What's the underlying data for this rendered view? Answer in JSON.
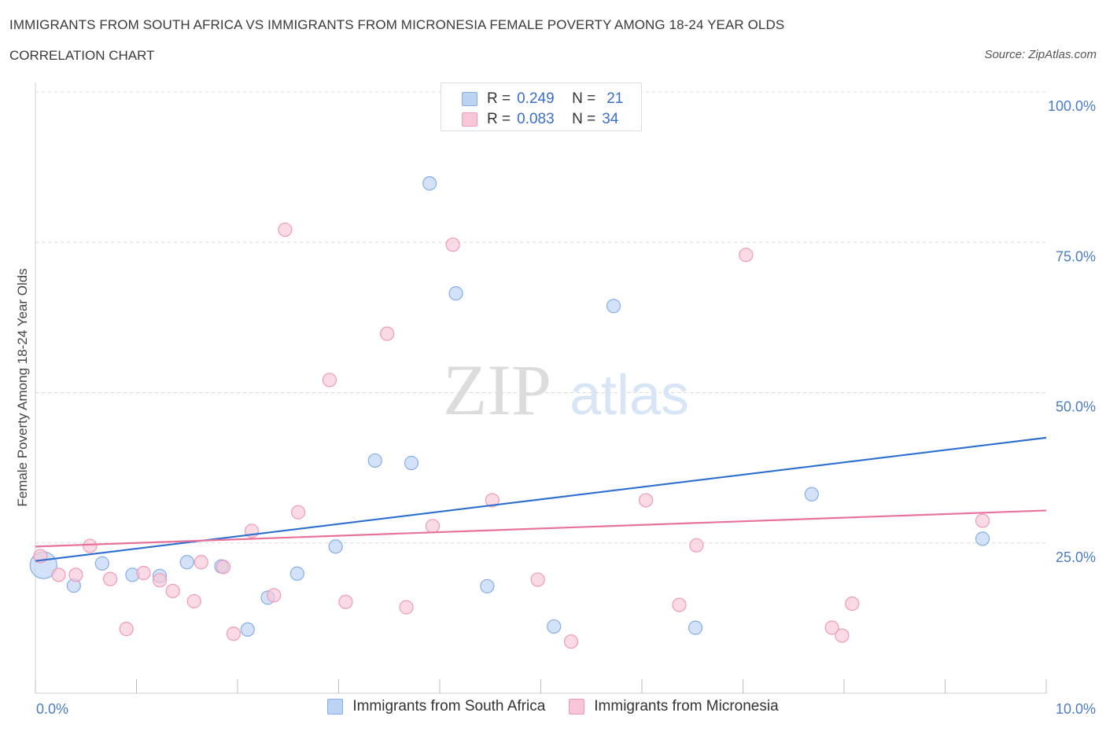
{
  "header": {
    "title": "IMMIGRANTS FROM SOUTH AFRICA VS IMMIGRANTS FROM MICRONESIA FEMALE POVERTY AMONG 18-24 YEAR OLDS",
    "subtitle": "CORRELATION CHART",
    "source": "Source: ZipAtlas.com"
  },
  "watermark": {
    "zip": "ZIP",
    "atlas": "atlas"
  },
  "legend": {
    "r_label": "R =",
    "n_label": "N =",
    "south_africa": {
      "r": "0.249",
      "n": "21"
    },
    "micronesia": {
      "r": "0.083",
      "n": "34"
    }
  },
  "colors": {
    "south_africa_fill": "#bcd3f4",
    "south_africa_stroke": "#86aee6",
    "south_africa_line": "#2c6fd1",
    "micronesia_fill": "#f8c6d6",
    "micronesia_stroke": "#ef9ab8",
    "micronesia_line": "#e8729a"
  },
  "chart_data": {
    "type": "scatter",
    "title": "IMMIGRANTS FROM SOUTH AFRICA VS IMMIGRANTS FROM MICRONESIA FEMALE POVERTY AMONG 18-24 YEAR OLDS",
    "xlabel": "",
    "ylabel": "Female Poverty Among 18-24 Year Olds",
    "xlim": [
      0,
      10
    ],
    "ylim": [
      0,
      100
    ],
    "x_tick_labels": [
      "0.0%",
      "10.0%"
    ],
    "y_ticks": [
      25,
      50,
      75,
      100
    ],
    "y_tick_labels": [
      "25.0%",
      "50.0%",
      "75.0%",
      "100.0%"
    ],
    "grid": true,
    "legend_position": "top-center",
    "series": [
      {
        "name": "Immigrants from South Africa",
        "key": "south_africa",
        "points": [
          {
            "x": 0.08,
            "y": 21.3,
            "large": true
          },
          {
            "x": 0.38,
            "y": 17.9
          },
          {
            "x": 0.66,
            "y": 21.6
          },
          {
            "x": 0.96,
            "y": 19.7
          },
          {
            "x": 1.23,
            "y": 19.5
          },
          {
            "x": 1.5,
            "y": 21.8
          },
          {
            "x": 1.84,
            "y": 21.1
          },
          {
            "x": 2.1,
            "y": 10.6
          },
          {
            "x": 2.3,
            "y": 15.9
          },
          {
            "x": 2.59,
            "y": 19.9
          },
          {
            "x": 2.97,
            "y": 24.4
          },
          {
            "x": 3.36,
            "y": 38.7
          },
          {
            "x": 3.72,
            "y": 38.3
          },
          {
            "x": 3.9,
            "y": 84.8
          },
          {
            "x": 4.16,
            "y": 66.5
          },
          {
            "x": 4.47,
            "y": 17.8
          },
          {
            "x": 5.13,
            "y": 11.1
          },
          {
            "x": 5.72,
            "y": 64.4
          },
          {
            "x": 6.53,
            "y": 10.9
          },
          {
            "x": 7.68,
            "y": 33.1
          },
          {
            "x": 9.37,
            "y": 25.7
          }
        ],
        "trend": {
          "x": [
            0,
            10
          ],
          "y": [
            22.0,
            42.5
          ]
        }
      },
      {
        "name": "Immigrants from Micronesia",
        "key": "micronesia",
        "points": [
          {
            "x": 0.05,
            "y": 22.8
          },
          {
            "x": 0.23,
            "y": 19.7
          },
          {
            "x": 0.4,
            "y": 19.7
          },
          {
            "x": 0.54,
            "y": 24.5
          },
          {
            "x": 0.74,
            "y": 19.0
          },
          {
            "x": 0.9,
            "y": 10.7
          },
          {
            "x": 1.07,
            "y": 20.0
          },
          {
            "x": 1.23,
            "y": 18.8
          },
          {
            "x": 1.36,
            "y": 17.0
          },
          {
            "x": 1.57,
            "y": 15.3
          },
          {
            "x": 1.64,
            "y": 21.8
          },
          {
            "x": 1.86,
            "y": 21.0
          },
          {
            "x": 1.96,
            "y": 9.9
          },
          {
            "x": 2.14,
            "y": 27.0
          },
          {
            "x": 2.36,
            "y": 16.3
          },
          {
            "x": 2.47,
            "y": 77.1
          },
          {
            "x": 2.6,
            "y": 30.1
          },
          {
            "x": 2.91,
            "y": 52.1
          },
          {
            "x": 3.07,
            "y": 15.2
          },
          {
            "x": 3.48,
            "y": 59.8
          },
          {
            "x": 3.67,
            "y": 14.3
          },
          {
            "x": 3.93,
            "y": 27.8
          },
          {
            "x": 4.13,
            "y": 74.6
          },
          {
            "x": 4.52,
            "y": 32.1
          },
          {
            "x": 4.97,
            "y": 18.9
          },
          {
            "x": 5.3,
            "y": 8.6
          },
          {
            "x": 6.04,
            "y": 32.1
          },
          {
            "x": 6.37,
            "y": 14.7
          },
          {
            "x": 6.54,
            "y": 24.6
          },
          {
            "x": 7.03,
            "y": 72.9
          },
          {
            "x": 7.88,
            "y": 10.9
          },
          {
            "x": 7.98,
            "y": 9.6
          },
          {
            "x": 8.08,
            "y": 14.9
          },
          {
            "x": 9.37,
            "y": 28.7
          }
        ],
        "trend": {
          "x": [
            0,
            10
          ],
          "y": [
            24.4,
            30.4
          ]
        }
      }
    ]
  },
  "bottom_legend": {
    "south_africa": "Immigrants from South Africa",
    "micronesia": "Immigrants from Micronesia"
  }
}
